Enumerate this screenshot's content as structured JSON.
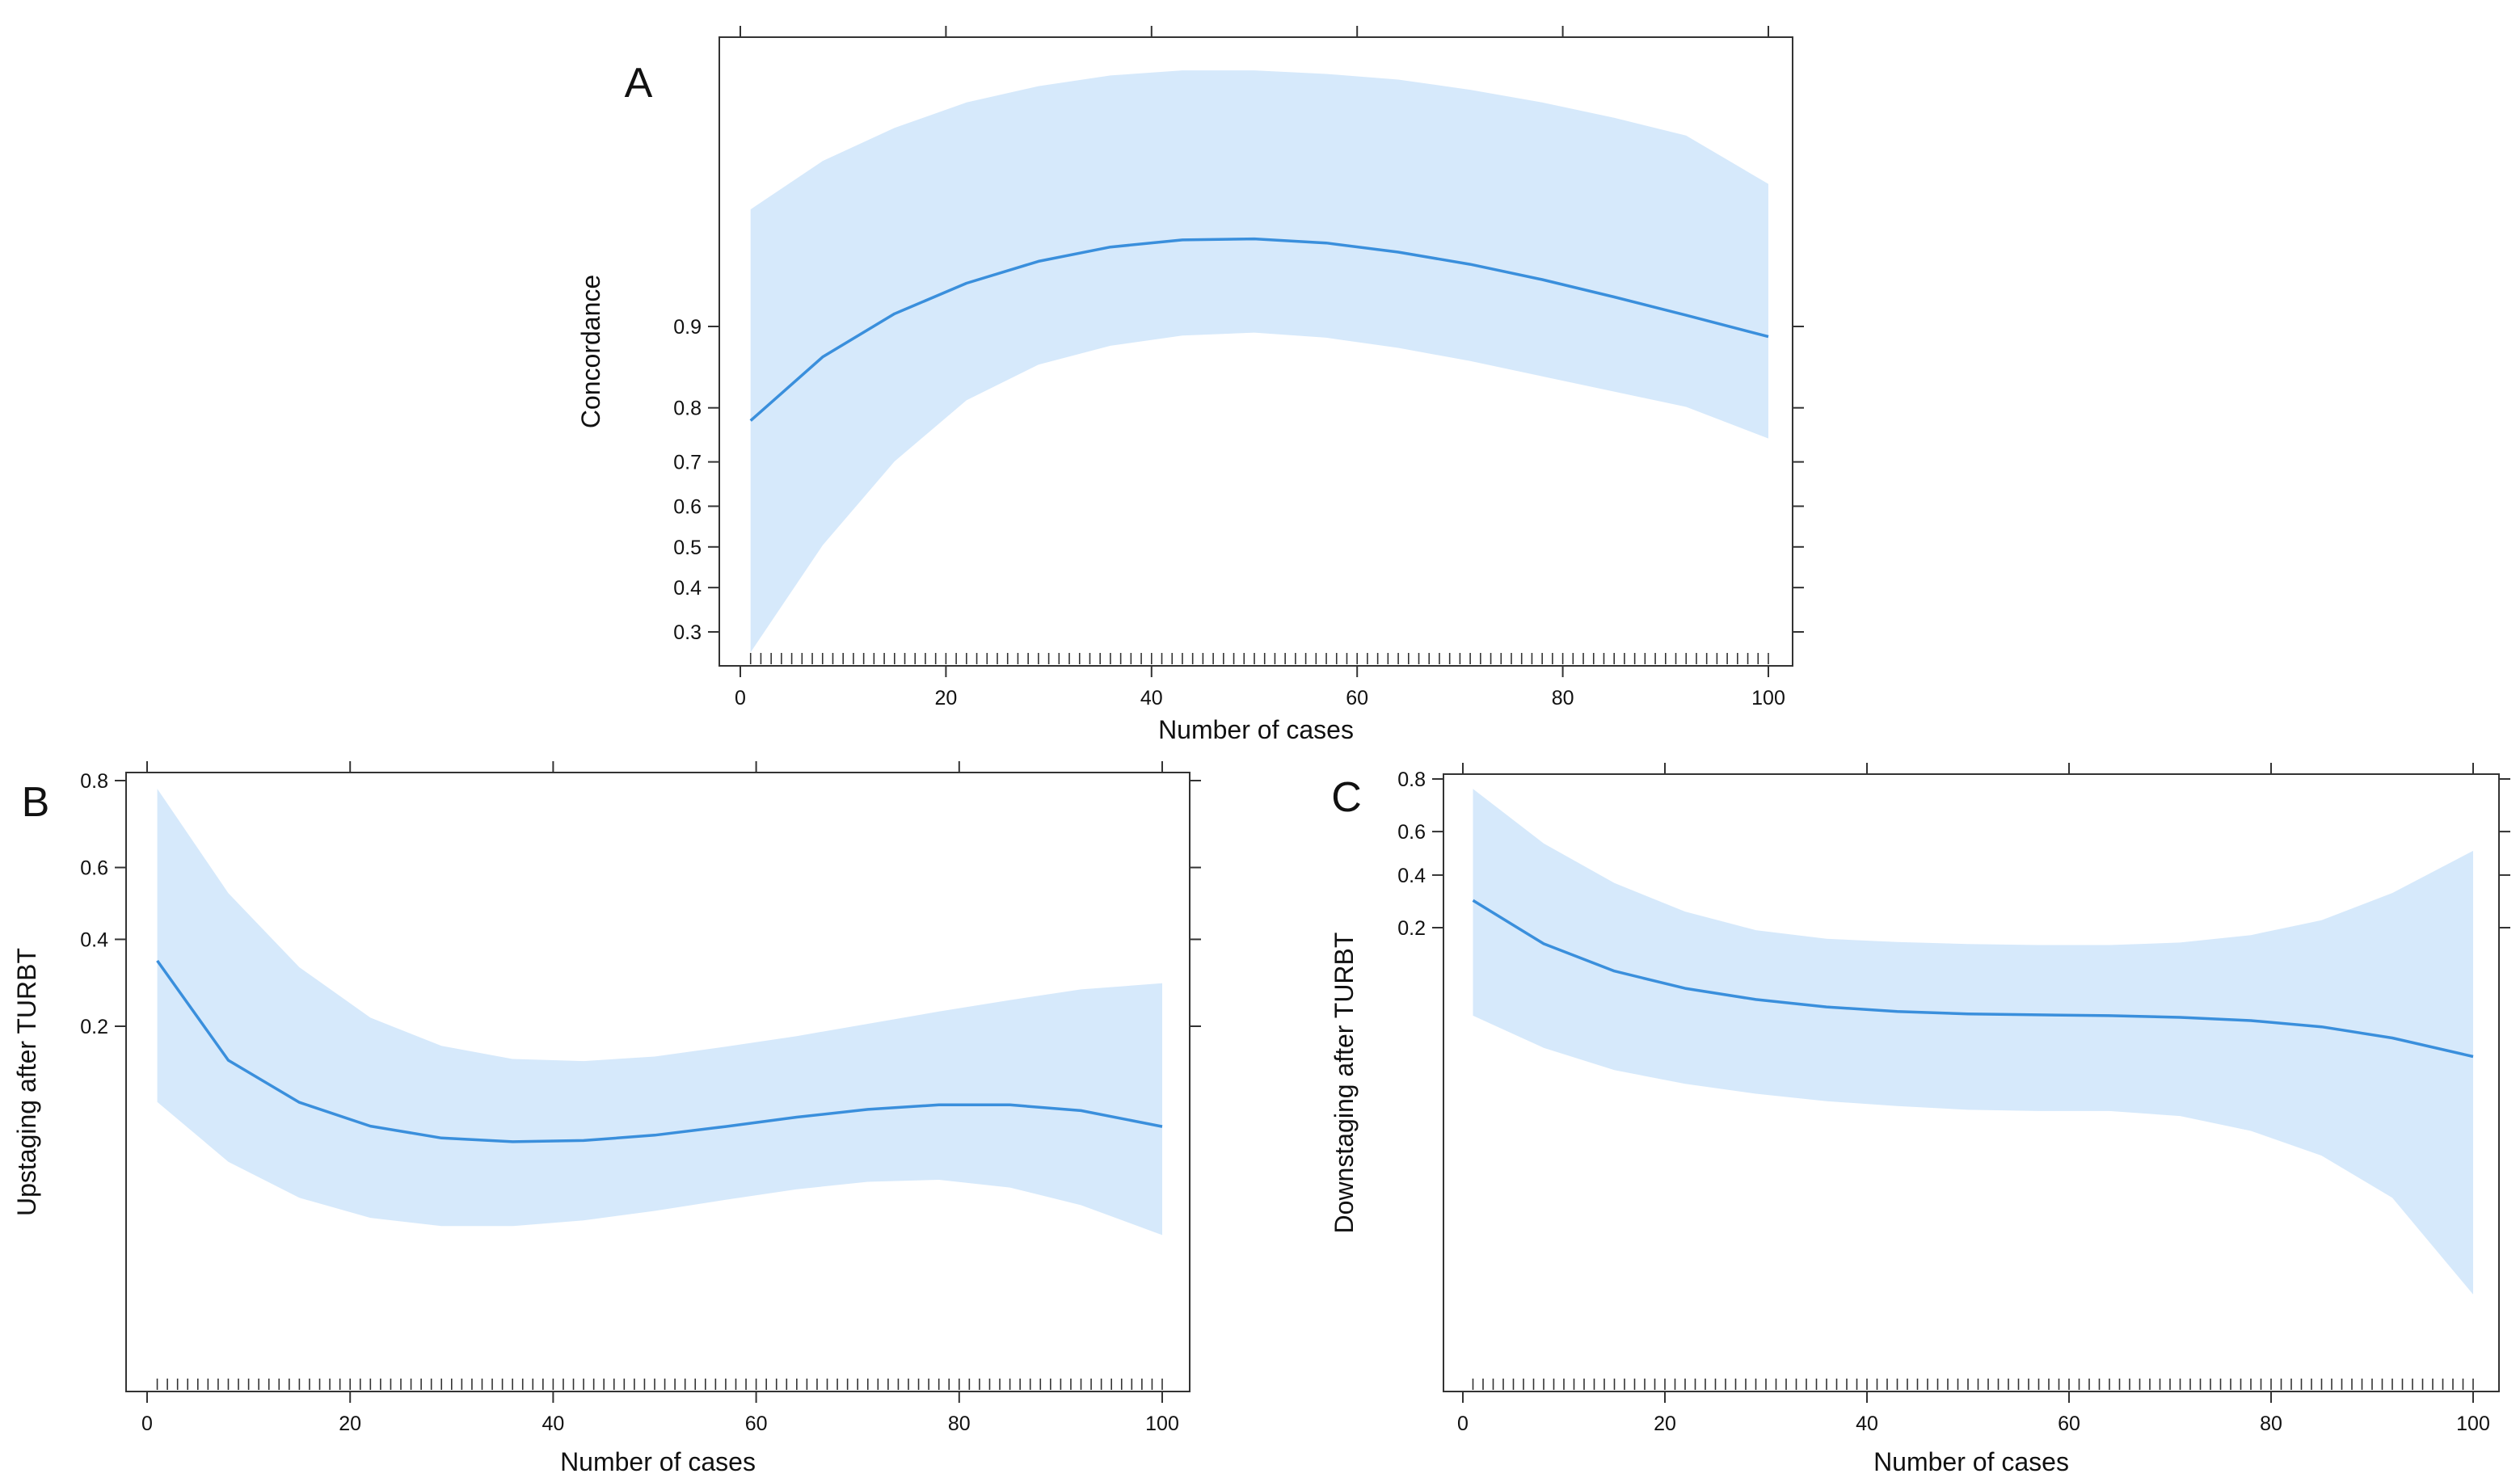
{
  "chart_data": [
    {
      "panel": "A",
      "type": "line",
      "xlabel": "Number of cases",
      "ylabel": "Concordance",
      "x_ticks": [
        0,
        20,
        40,
        60,
        80,
        100
      ],
      "y_ticks": [
        0.3,
        0.4,
        0.5,
        0.6,
        0.7,
        0.8,
        0.9
      ],
      "rug": true,
      "grid": false,
      "series": [
        {
          "x": [
            1,
            8,
            15,
            22,
            29,
            36,
            43,
            50,
            57,
            64,
            71,
            78,
            85,
            92,
            100
          ],
          "y": [
            0.715,
            0.84,
            0.925,
            0.985,
            1.028,
            1.056,
            1.07,
            1.072,
            1.064,
            1.046,
            1.022,
            0.992,
            0.958,
            0.922,
            0.88
          ],
          "lower": [
            0.26,
            0.47,
            0.635,
            0.755,
            0.825,
            0.862,
            0.882,
            0.888,
            0.878,
            0.858,
            0.832,
            0.802,
            0.772,
            0.742,
            0.68
          ],
          "upper": [
            1.13,
            1.225,
            1.29,
            1.34,
            1.372,
            1.393,
            1.403,
            1.403,
            1.396,
            1.385,
            1.365,
            1.34,
            1.31,
            1.275,
            1.18
          ],
          "color": "#3a8fdc",
          "band_color": "#d6e9fb"
        }
      ]
    },
    {
      "panel": "B",
      "type": "line",
      "xlabel": "Number of cases",
      "ylabel": "Upstaging after TURBT",
      "x_ticks": [
        0,
        20,
        40,
        60,
        80,
        100
      ],
      "y_ticks": [
        0.2,
        0.4,
        0.6,
        0.8
      ],
      "rug": true,
      "grid": false,
      "series": [
        {
          "x": [
            1,
            8,
            15,
            22,
            29,
            36,
            43,
            50,
            57,
            64,
            71,
            78,
            85,
            92,
            100
          ],
          "y": [
            0.36,
            0.117,
            0.014,
            -0.044,
            -0.073,
            -0.082,
            -0.079,
            -0.066,
            -0.045,
            -0.022,
            -0.003,
            0.008,
            0.008,
            -0.006,
            -0.045
          ],
          "lower": [
            0.015,
            -0.131,
            -0.219,
            -0.268,
            -0.288,
            -0.288,
            -0.274,
            -0.251,
            -0.224,
            -0.198,
            -0.18,
            -0.175,
            -0.194,
            -0.237,
            -0.31
          ],
          "upper": [
            0.78,
            0.525,
            0.344,
            0.221,
            0.152,
            0.12,
            0.115,
            0.126,
            0.15,
            0.176,
            0.206,
            0.236,
            0.264,
            0.29,
            0.305
          ],
          "color": "#3a8fdc",
          "band_color": "#d6e9fb"
        }
      ]
    },
    {
      "panel": "C",
      "type": "line",
      "xlabel": "Number of cases",
      "ylabel": "Downstaging after TURBT",
      "x_ticks": [
        0,
        20,
        40,
        60,
        80,
        100
      ],
      "y_ticks": [
        0.2,
        0.4,
        0.6,
        0.8
      ],
      "rug": true,
      "grid": false,
      "series": [
        {
          "x": [
            1,
            8,
            15,
            22,
            29,
            36,
            43,
            50,
            57,
            64,
            71,
            78,
            85,
            92,
            100
          ],
          "y": [
            0.31,
            0.135,
            0.025,
            -0.045,
            -0.09,
            -0.12,
            -0.138,
            -0.148,
            -0.152,
            -0.155,
            -0.162,
            -0.175,
            -0.2,
            -0.245,
            -0.32
          ],
          "lower": [
            -0.155,
            -0.285,
            -0.375,
            -0.43,
            -0.47,
            -0.5,
            -0.52,
            -0.535,
            -0.54,
            -0.54,
            -0.56,
            -0.62,
            -0.72,
            -0.89,
            -1.28
          ],
          "upper": [
            0.76,
            0.54,
            0.38,
            0.265,
            0.19,
            0.155,
            0.142,
            0.134,
            0.13,
            0.13,
            0.14,
            0.17,
            0.23,
            0.34,
            0.51
          ],
          "color": "#3a8fdc",
          "band_color": "#d6e9fb"
        }
      ]
    }
  ]
}
